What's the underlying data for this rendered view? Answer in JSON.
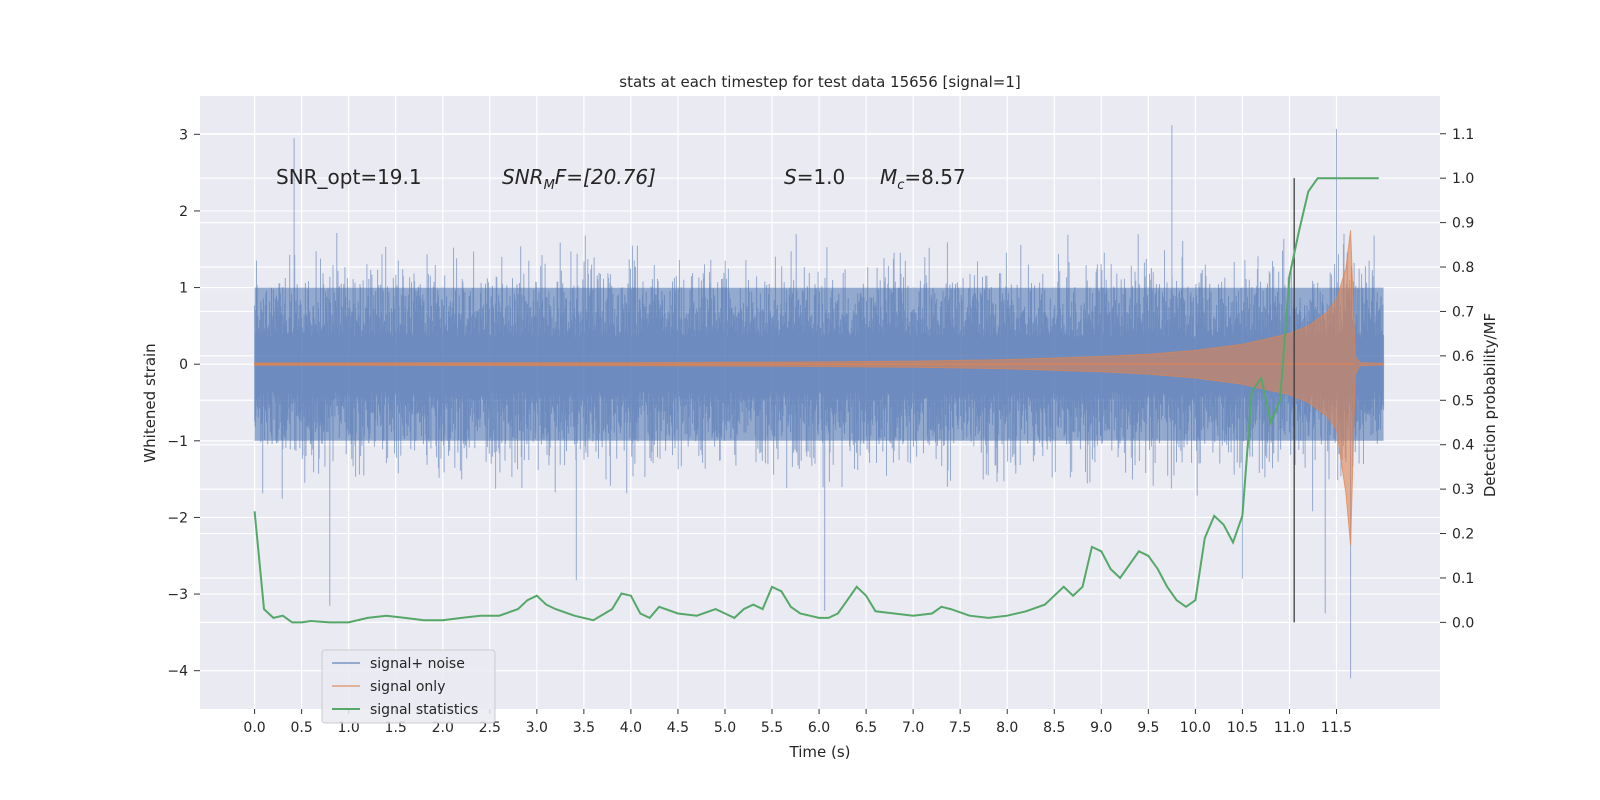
{
  "chart_data": {
    "type": "line",
    "title": "stats at each timestep for test data 15656 [signal=1]",
    "xlabel": "Time (s)",
    "ylabel": "Whitened strain",
    "y2label": "Detection probability/MF",
    "xlim": [
      -0.58,
      12.6
    ],
    "ylim": [
      -4.5,
      3.5
    ],
    "y2lim": [
      -0.195,
      1.185
    ],
    "x_ticks": [
      "0.0",
      "0.5",
      "1.0",
      "1.5",
      "2.0",
      "2.5",
      "3.0",
      "3.5",
      "4.0",
      "4.5",
      "5.0",
      "5.5",
      "6.0",
      "6.5",
      "7.0",
      "7.5",
      "8.0",
      "8.5",
      "9.0",
      "9.5",
      "10.0",
      "10.5",
      "11.0",
      "11.5"
    ],
    "y_ticks": [
      "3",
      "2",
      "1",
      "0",
      "−1",
      "−2",
      "−3",
      "−4"
    ],
    "y2_ticks": [
      "1.1",
      "1.0",
      "0.9",
      "0.8",
      "0.7",
      "0.6",
      "0.5",
      "0.4",
      "0.3",
      "0.2",
      "0.1",
      "0.0"
    ],
    "grid": true,
    "annotations": {
      "snr_opt": "SNR_opt=19.1",
      "snr_mf_base": "SNR",
      "snr_mf_sub": "M",
      "snr_mf_rest": "F=[20.76]",
      "s_var": "S",
      "s_rest": "=1.0",
      "mc_base": "M",
      "mc_sub": "c",
      "mc_rest": "=8.57"
    },
    "vline_x": 11.05,
    "legend": {
      "position": "lower-left",
      "entries": [
        {
          "label": "signal+ noise",
          "color": "#4c72b0"
        },
        {
          "label": "signal only",
          "color": "#dd8452"
        },
        {
          "label": "signal statistics",
          "color": "#55a868"
        }
      ]
    },
    "series": [
      {
        "name": "signal+ noise",
        "color": "#4c72b0",
        "x_range": [
          0.0,
          12.0
        ],
        "typical_envelope": [
          -1.6,
          1.7
        ],
        "extreme_peaks": [
          {
            "x": 0.42,
            "y": 2.95
          },
          {
            "x": 0.8,
            "y": -3.15
          },
          {
            "x": 3.42,
            "y": -2.82
          },
          {
            "x": 6.06,
            "y": -3.22
          },
          {
            "x": 9.75,
            "y": 3.12
          },
          {
            "x": 10.5,
            "y": -2.8
          },
          {
            "x": 11.38,
            "y": -3.25
          },
          {
            "x": 11.5,
            "y": 3.07
          },
          {
            "x": 11.65,
            "y": -4.1
          }
        ]
      },
      {
        "name": "signal only",
        "color": "#dd8452",
        "x": [
          0.0,
          4.0,
          6.0,
          7.0,
          8.0,
          9.0,
          9.5,
          10.0,
          10.5,
          11.0,
          11.2,
          11.4,
          11.5,
          11.6,
          11.65,
          11.7,
          11.75,
          12.0
        ],
        "amplitude": [
          0.015,
          0.02,
          0.03,
          0.04,
          0.06,
          0.1,
          0.13,
          0.18,
          0.26,
          0.4,
          0.5,
          0.68,
          0.85,
          1.25,
          1.75,
          0.1,
          0.02,
          0.01
        ]
      },
      {
        "name": "signal statistics",
        "color": "#55a868",
        "axis": "right",
        "x": [
          0.0,
          0.1,
          0.2,
          0.3,
          0.4,
          0.5,
          0.6,
          0.8,
          1.0,
          1.2,
          1.4,
          1.6,
          1.8,
          2.0,
          2.2,
          2.4,
          2.6,
          2.8,
          2.9,
          3.0,
          3.1,
          3.2,
          3.4,
          3.6,
          3.8,
          3.9,
          4.0,
          4.1,
          4.2,
          4.3,
          4.5,
          4.7,
          4.9,
          5.0,
          5.1,
          5.2,
          5.3,
          5.4,
          5.5,
          5.6,
          5.7,
          5.8,
          5.9,
          6.0,
          6.1,
          6.2,
          6.3,
          6.4,
          6.5,
          6.6,
          6.8,
          7.0,
          7.2,
          7.3,
          7.4,
          7.6,
          7.8,
          8.0,
          8.2,
          8.4,
          8.5,
          8.6,
          8.7,
          8.8,
          8.9,
          9.0,
          9.1,
          9.2,
          9.3,
          9.4,
          9.5,
          9.6,
          9.7,
          9.8,
          9.9,
          10.0,
          10.1,
          10.2,
          10.3,
          10.4,
          10.5,
          10.6,
          10.7,
          10.8,
          10.9,
          11.0,
          11.1,
          11.2,
          11.3,
          11.4,
          11.5,
          11.6,
          11.8,
          11.95
        ],
        "values": [
          0.25,
          0.03,
          0.01,
          0.015,
          0.0,
          0.0,
          0.003,
          0.0,
          0.0,
          0.01,
          0.015,
          0.01,
          0.005,
          0.005,
          0.01,
          0.015,
          0.015,
          0.03,
          0.05,
          0.06,
          0.04,
          0.03,
          0.015,
          0.005,
          0.03,
          0.065,
          0.06,
          0.02,
          0.01,
          0.035,
          0.02,
          0.015,
          0.03,
          0.02,
          0.01,
          0.03,
          0.04,
          0.03,
          0.08,
          0.07,
          0.035,
          0.02,
          0.015,
          0.01,
          0.01,
          0.02,
          0.05,
          0.08,
          0.06,
          0.025,
          0.02,
          0.015,
          0.02,
          0.035,
          0.03,
          0.015,
          0.01,
          0.015,
          0.025,
          0.04,
          0.06,
          0.08,
          0.06,
          0.08,
          0.17,
          0.16,
          0.12,
          0.1,
          0.13,
          0.16,
          0.15,
          0.12,
          0.08,
          0.05,
          0.035,
          0.05,
          0.19,
          0.24,
          0.22,
          0.18,
          0.24,
          0.52,
          0.55,
          0.45,
          0.5,
          0.78,
          0.88,
          0.97,
          1.0,
          1.0,
          1.0,
          1.0,
          1.0,
          1.0
        ]
      }
    ]
  }
}
